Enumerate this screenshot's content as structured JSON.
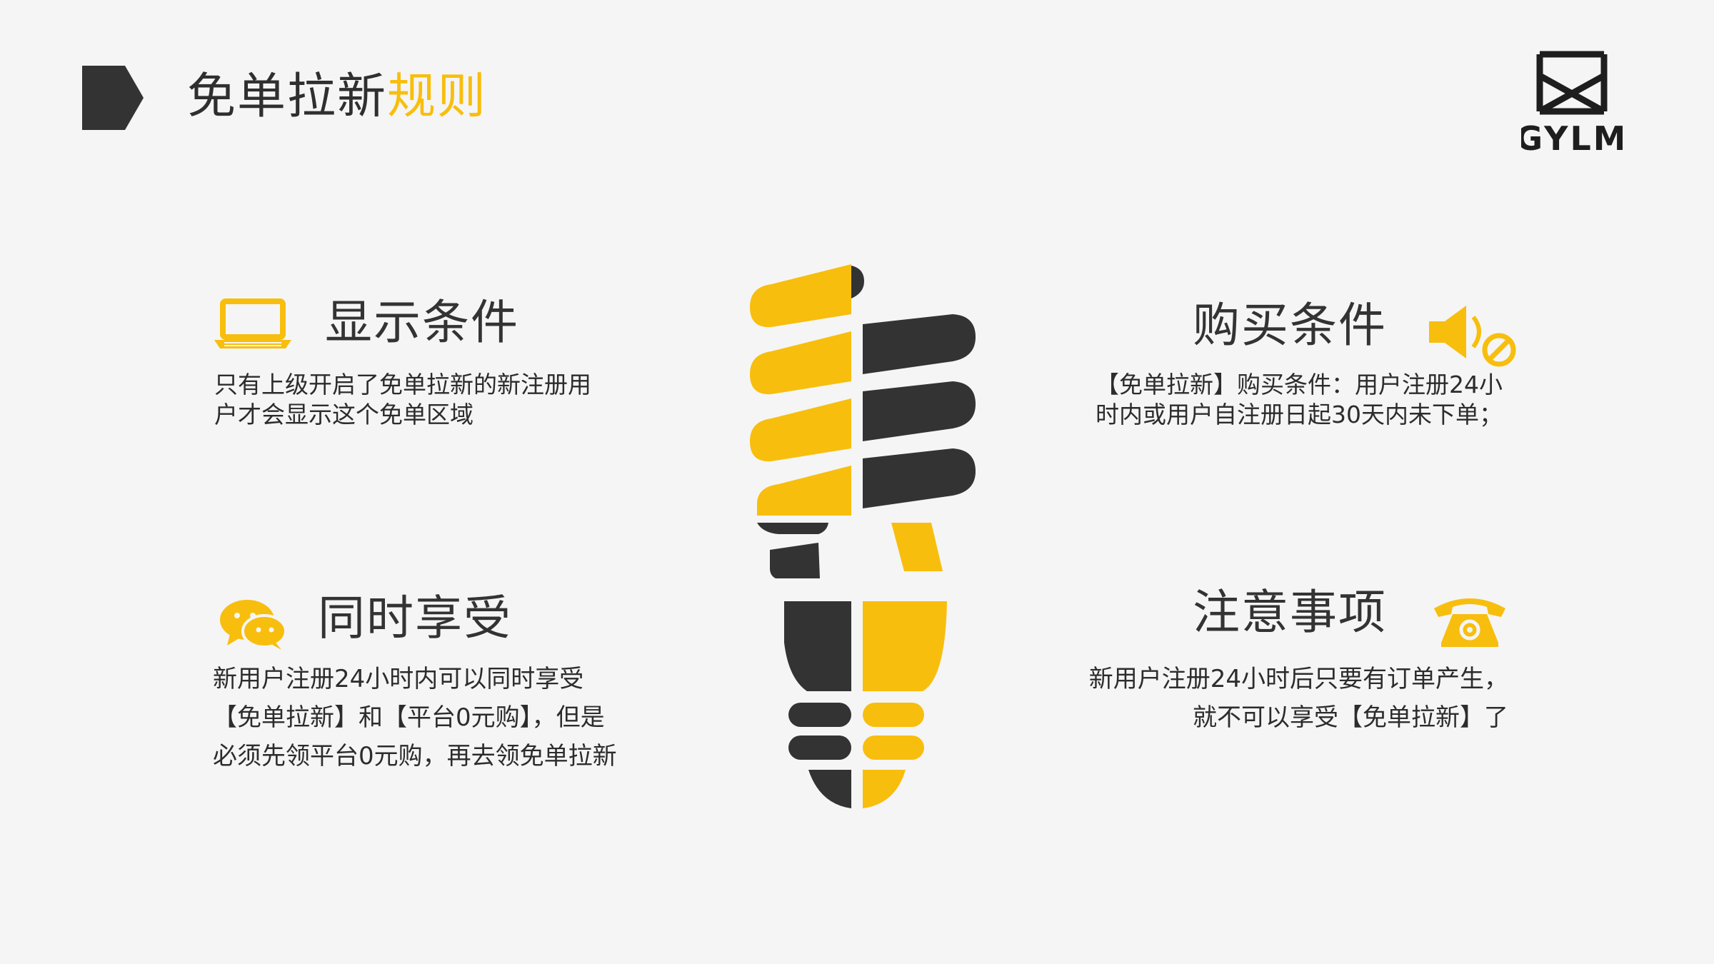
{
  "header": {
    "title_part1": "免单拉新",
    "title_part2": "规则"
  },
  "logo": {
    "text": "GYLM",
    "icon": "gylm-monogram-logo"
  },
  "colors": {
    "accent": "#f8be0e",
    "dark": "#333333",
    "background": "#f5f5f5"
  },
  "sections": {
    "display": {
      "icon": "laptop-icon",
      "title": "显示条件",
      "text": "只有上级开启了免单拉新的新注册用户才会显示这个免单区域"
    },
    "enjoy": {
      "icon": "chat-bubbles-icon",
      "title": "同时享受",
      "text": "新用户注册24小时内可以同时享受【免单拉新】和【平台0元购】，但是必须先领平台0元购，再去领免单拉新"
    },
    "buy": {
      "icon": "speaker-mute-icon",
      "title": "购买条件",
      "text": "【免单拉新】购买条件：用户注册24小时内或用户自注册日起30天内未下单；"
    },
    "notes": {
      "icon": "telephone-icon",
      "title": "注意事项",
      "text_line1": "新用户注册24小时后只要有订单产生，",
      "text_line2": "就不可以享受【免单拉新】了"
    }
  },
  "illustration": {
    "icon": "light-bulb-icon"
  }
}
